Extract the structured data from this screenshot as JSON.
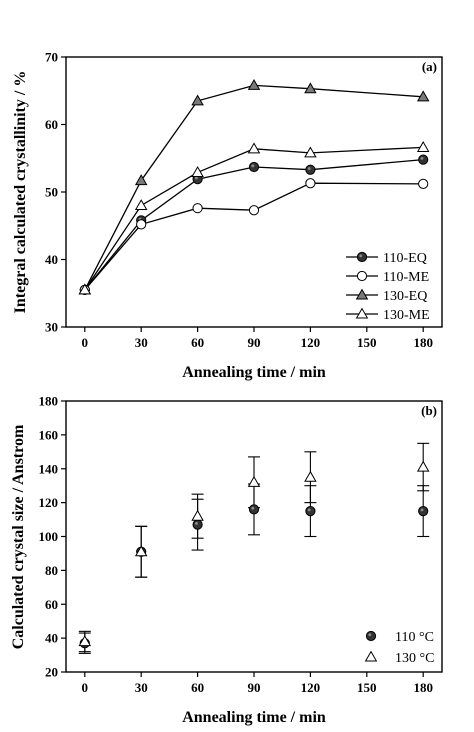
{
  "chart_data": [
    {
      "type": "line",
      "panel_label": "(a)",
      "xlabel": "Annealing time / min",
      "ylabel": "Integral calculated crystallinity / %",
      "xlim": [
        -10,
        190
      ],
      "ylim": [
        30,
        70
      ],
      "x_ticks": [
        0,
        30,
        60,
        90,
        120,
        150,
        180
      ],
      "y_ticks": [
        30,
        40,
        50,
        60,
        70
      ],
      "legend_position": "bottom-right",
      "series": [
        {
          "name": "110-EQ",
          "marker": "filled-circle",
          "x": [
            0,
            30,
            60,
            90,
            120,
            180
          ],
          "y": [
            35.5,
            45.8,
            51.9,
            53.7,
            53.3,
            54.8
          ]
        },
        {
          "name": "110-ME",
          "marker": "open-circle",
          "x": [
            0,
            30,
            60,
            90,
            120,
            180
          ],
          "y": [
            35.5,
            45.2,
            47.6,
            47.3,
            51.3,
            51.2
          ]
        },
        {
          "name": "130-EQ",
          "marker": "filled-triangle",
          "x": [
            0,
            30,
            60,
            90,
            120,
            180
          ],
          "y": [
            35.5,
            51.7,
            63.5,
            65.8,
            65.3,
            64.1
          ]
        },
        {
          "name": "130-ME",
          "marker": "open-triangle",
          "x": [
            0,
            30,
            60,
            90,
            120,
            180
          ],
          "y": [
            35.5,
            48.0,
            52.9,
            56.4,
            55.8,
            56.6
          ]
        }
      ]
    },
    {
      "type": "scatter",
      "panel_label": "(b)",
      "xlabel": "Annealing time / min",
      "ylabel": "Calculated crystal size / Anstrom",
      "xlim": [
        -10,
        190
      ],
      "ylim": [
        20,
        180
      ],
      "x_ticks": [
        0,
        30,
        60,
        90,
        120,
        150,
        180
      ],
      "y_ticks": [
        20,
        40,
        60,
        80,
        100,
        120,
        140,
        160,
        180
      ],
      "legend_position": "bottom-right",
      "series": [
        {
          "name": "110 °C",
          "marker": "filled-circle",
          "x": [
            0,
            30,
            60,
            90,
            120,
            180
          ],
          "y": [
            37,
            91,
            107,
            116,
            115,
            115
          ],
          "err": [
            6,
            15,
            15,
            15,
            15,
            15
          ]
        },
        {
          "name": "130 °C",
          "marker": "open-triangle",
          "x": [
            0,
            30,
            60,
            90,
            120,
            180
          ],
          "y": [
            38,
            91,
            112,
            132,
            135,
            141
          ],
          "err": [
            6,
            15,
            13,
            15,
            15,
            14
          ]
        }
      ]
    }
  ]
}
